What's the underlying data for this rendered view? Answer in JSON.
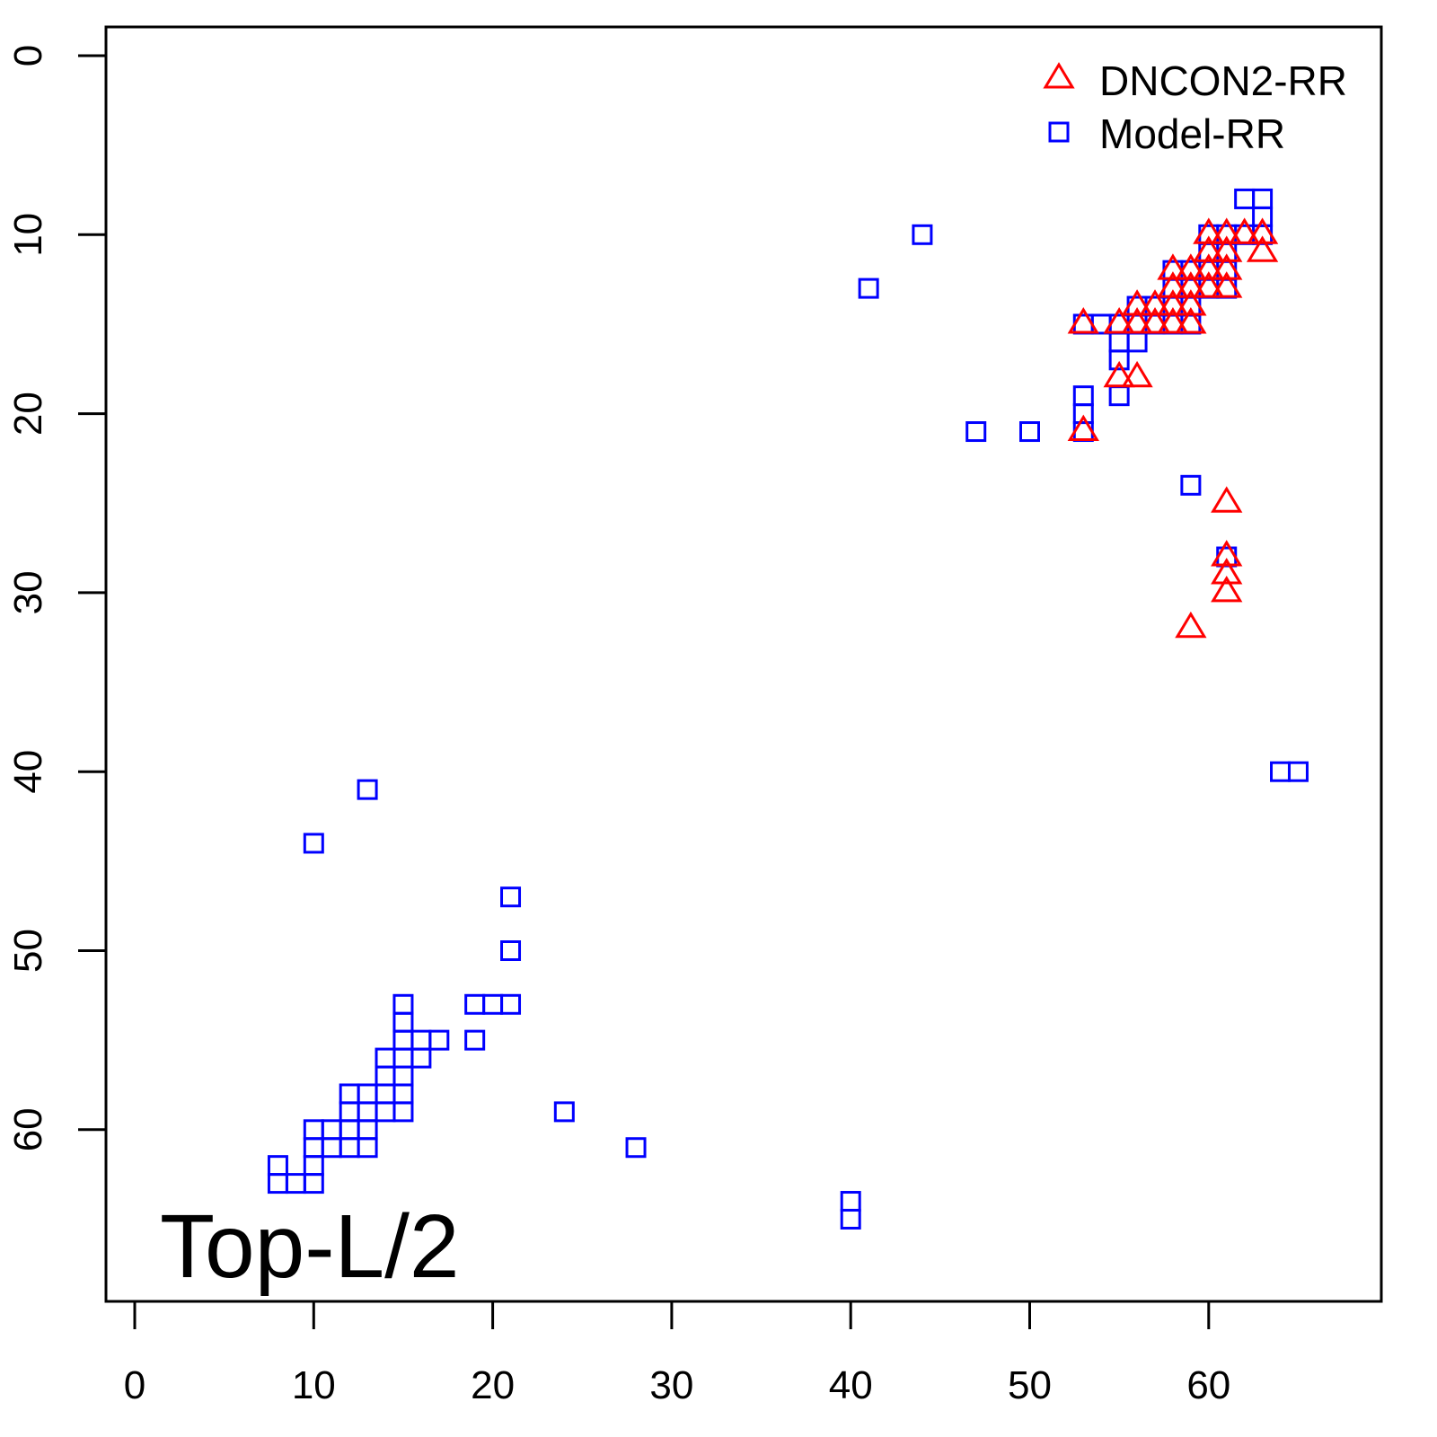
{
  "chart_data": {
    "type": "scatter",
    "title": "",
    "annotation": "Top-L/2",
    "xlabel": "",
    "ylabel": "",
    "xlim": [
      -1.6,
      69.7
    ],
    "ylim": [
      -1.6,
      69.6
    ],
    "y_inverted": true,
    "grid": false,
    "legend_position": "top-right",
    "xticks": [
      0,
      10,
      20,
      30,
      40,
      50,
      60
    ],
    "yticks": [
      0,
      10,
      20,
      30,
      40,
      50,
      60
    ],
    "colors": {
      "dncon2": "#ff0000",
      "model": "#0000ff"
    },
    "series": [
      {
        "name": "Model-RR",
        "marker": "square",
        "color": "#0000ff",
        "points": [
          [
            8,
            62
          ],
          [
            8,
            63
          ],
          [
            9,
            63
          ],
          [
            10,
            63
          ],
          [
            10,
            62
          ],
          [
            10,
            61
          ],
          [
            10,
            60
          ],
          [
            11,
            61
          ],
          [
            11,
            60
          ],
          [
            12,
            61
          ],
          [
            12,
            60
          ],
          [
            12,
            59
          ],
          [
            12,
            58
          ],
          [
            13,
            61
          ],
          [
            13,
            60
          ],
          [
            13,
            59
          ],
          [
            13,
            58
          ],
          [
            14,
            59
          ],
          [
            14,
            58
          ],
          [
            14,
            57
          ],
          [
            14,
            56
          ],
          [
            15,
            59
          ],
          [
            15,
            58
          ],
          [
            15,
            57
          ],
          [
            15,
            56
          ],
          [
            15,
            55
          ],
          [
            15,
            54
          ],
          [
            15,
            53
          ],
          [
            16,
            56
          ],
          [
            16,
            55
          ],
          [
            17,
            55
          ],
          [
            19,
            55
          ],
          [
            19,
            53
          ],
          [
            20,
            53
          ],
          [
            21,
            53
          ],
          [
            21,
            50
          ],
          [
            21,
            47
          ],
          [
            24,
            59
          ],
          [
            28,
            61
          ],
          [
            40,
            64
          ],
          [
            40,
            65
          ],
          [
            10,
            44
          ],
          [
            13,
            41
          ],
          [
            41,
            13
          ],
          [
            44,
            10
          ],
          [
            47,
            21
          ],
          [
            50,
            21
          ],
          [
            53,
            19
          ],
          [
            53,
            20
          ],
          [
            53,
            21
          ],
          [
            53,
            15
          ],
          [
            54,
            15
          ],
          [
            55,
            15
          ],
          [
            55,
            16
          ],
          [
            55,
            17
          ],
          [
            55,
            19
          ],
          [
            56,
            15
          ],
          [
            56,
            16
          ],
          [
            56,
            14
          ],
          [
            57,
            14
          ],
          [
            57,
            15
          ],
          [
            58,
            14
          ],
          [
            58,
            15
          ],
          [
            58,
            13
          ],
          [
            58,
            12
          ],
          [
            59,
            12
          ],
          [
            59,
            13
          ],
          [
            59,
            14
          ],
          [
            59,
            15
          ],
          [
            60,
            12
          ],
          [
            60,
            13
          ],
          [
            60,
            11
          ],
          [
            60,
            10
          ],
          [
            61,
            10
          ],
          [
            61,
            11
          ],
          [
            61,
            12
          ],
          [
            61,
            13
          ],
          [
            62,
            10
          ],
          [
            62,
            8
          ],
          [
            63,
            8
          ],
          [
            63,
            9
          ],
          [
            63,
            10
          ],
          [
            59,
            24
          ],
          [
            61,
            28
          ],
          [
            64,
            40
          ],
          [
            65,
            40
          ]
        ]
      },
      {
        "name": "DNCON2-RR",
        "marker": "triangle",
        "color": "#ff0000",
        "points": [
          [
            53,
            15
          ],
          [
            55,
            15
          ],
          [
            55,
            18
          ],
          [
            56,
            18
          ],
          [
            56,
            15
          ],
          [
            56,
            14
          ],
          [
            57,
            15
          ],
          [
            57,
            14
          ],
          [
            58,
            15
          ],
          [
            58,
            14
          ],
          [
            58,
            13
          ],
          [
            58,
            12
          ],
          [
            59,
            15
          ],
          [
            59,
            14
          ],
          [
            59,
            13
          ],
          [
            59,
            12
          ],
          [
            60,
            13
          ],
          [
            60,
            12
          ],
          [
            60,
            11
          ],
          [
            60,
            10
          ],
          [
            61,
            13
          ],
          [
            61,
            12
          ],
          [
            61,
            11
          ],
          [
            61,
            10
          ],
          [
            62,
            10
          ],
          [
            63,
            10
          ],
          [
            63,
            11
          ],
          [
            53,
            21
          ],
          [
            61,
            25
          ],
          [
            61,
            28
          ],
          [
            61,
            29
          ],
          [
            61,
            30
          ],
          [
            59,
            32
          ]
        ]
      }
    ],
    "legend": [
      {
        "label": "DNCON2-RR",
        "marker": "triangle",
        "color": "#ff0000"
      },
      {
        "label": "Model-RR",
        "marker": "square",
        "color": "#0000ff"
      }
    ]
  }
}
